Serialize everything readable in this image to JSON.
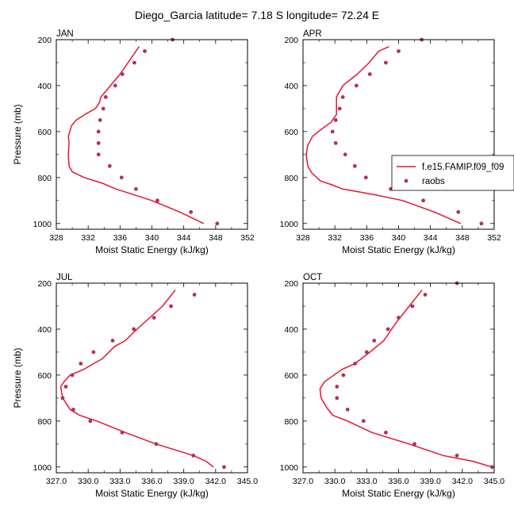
{
  "title": "Diego_Garcia  latitude= 7.18 S longitude= 72.24 E",
  "colors": {
    "model": "#e8142b",
    "raobs": "#b03060"
  },
  "legend": {
    "model_label": "f.e15.FAMIP.f09_f09",
    "raobs_label": "raobs",
    "placement": "right of APR panel"
  },
  "chart_data": [
    {
      "type": "line",
      "panel": "JAN",
      "title": "JAN",
      "xlabel": "Moist Static Energy (kJ/kg)",
      "ylabel": "Pressure (mb)",
      "xlim": [
        328,
        352
      ],
      "ylim": [
        200,
        1025
      ],
      "y_reversed": true,
      "xticks": [
        "328",
        "332",
        "336",
        "340",
        "344",
        "348",
        "352"
      ],
      "yticks": [
        "200",
        "400",
        "600",
        "800",
        "1000"
      ],
      "series": [
        {
          "name": "f.e15.FAMIP.f09_f09",
          "style": "line",
          "x": [
            346.5,
            343.5,
            340.0,
            335.5,
            333.8,
            331.5,
            330.0,
            329.6,
            329.5,
            329.6,
            329.5,
            329.7,
            329.9,
            330.5,
            331.6,
            332.9,
            333.4,
            333.6,
            334.8,
            336.0,
            337.0,
            338.4
          ],
          "y": [
            1000,
            950,
            900,
            850,
            825,
            800,
            775,
            750,
            700,
            650,
            620,
            600,
            575,
            550,
            525,
            500,
            475,
            450,
            400,
            350,
            300,
            230
          ]
        },
        {
          "name": "raobs",
          "style": "markers",
          "x": [
            348.2,
            344.9,
            340.7,
            338.0,
            336.2,
            334.7,
            333.3,
            333.3,
            333.3,
            333.5,
            333.9,
            334.2,
            335.4,
            336.3,
            337.8,
            339.1,
            342.6
          ],
          "y": [
            1000,
            950,
            900,
            850,
            800,
            750,
            700,
            650,
            600,
            550,
            500,
            450,
            400,
            350,
            300,
            250,
            200
          ]
        }
      ]
    },
    {
      "type": "line",
      "panel": "APR",
      "title": "APR",
      "xlabel": "Moist Static Energy (kJ/kg)",
      "ylabel": "",
      "xlim": [
        328,
        352
      ],
      "ylim": [
        200,
        1025
      ],
      "y_reversed": true,
      "xticks": [
        "328",
        "332",
        "336",
        "340",
        "344",
        "348",
        "352"
      ],
      "yticks": [
        "200",
        "400",
        "600",
        "800",
        "1000"
      ],
      "series": [
        {
          "name": "f.e15.FAMIP.f09_f09",
          "style": "line",
          "x": [
            347.8,
            344.5,
            340.5,
            337.0,
            333.0,
            331.5,
            330.2,
            329.1,
            328.6,
            328.4,
            328.6,
            329.2,
            330.3,
            331.5,
            332.2,
            332.2,
            332.2,
            333.0,
            334.8,
            336.3,
            337.5,
            338.8
          ],
          "y": [
            1000,
            950,
            900,
            875,
            850,
            830,
            815,
            780,
            750,
            700,
            660,
            620,
            590,
            560,
            525,
            500,
            450,
            400,
            350,
            300,
            250,
            230
          ]
        },
        {
          "name": "raobs",
          "style": "markers",
          "x": [
            350.4,
            347.5,
            343.1,
            339.0,
            335.9,
            334.5,
            333.3,
            332.1,
            331.7,
            332.1,
            332.6,
            333.0,
            334.7,
            336.4,
            338.4,
            340.0,
            342.9
          ],
          "y": [
            1000,
            950,
            900,
            850,
            800,
            750,
            700,
            650,
            600,
            550,
            500,
            450,
            400,
            350,
            300,
            250,
            200
          ]
        }
      ]
    },
    {
      "type": "line",
      "panel": "JUL",
      "title": "JUL",
      "xlabel": "Moist Static Energy (kJ/kg)",
      "ylabel": "Pressure (mb)",
      "xlim": [
        327,
        345
      ],
      "ylim": [
        200,
        1025
      ],
      "y_reversed": true,
      "xticks": [
        "327.0",
        "330.0",
        "333.0",
        "336.0",
        "339.0",
        "342.0",
        "345.0"
      ],
      "yticks": [
        "200",
        "400",
        "600",
        "800",
        "1000"
      ],
      "series": [
        {
          "name": "f.e15.FAMIP.f09_f09",
          "style": "line",
          "x": [
            341.8,
            341.1,
            339.9,
            336.4,
            333.5,
            330.8,
            329.2,
            328.3,
            327.6,
            327.4,
            327.8,
            328.3,
            329.6,
            330.5,
            331.3,
            332.5,
            333.5,
            334.6,
            335.8,
            337.0,
            338.2
          ],
          "y": [
            1000,
            975,
            950,
            900,
            850,
            800,
            775,
            750,
            700,
            650,
            625,
            600,
            575,
            550,
            530,
            475,
            450,
            400,
            350,
            300,
            230
          ]
        },
        {
          "name": "raobs",
          "style": "markers",
          "x": [
            342.8,
            339.9,
            336.4,
            333.2,
            330.2,
            328.6,
            327.6,
            327.9,
            328.5,
            329.3,
            330.5,
            332.3,
            334.3,
            336.2,
            337.8,
            340.0
          ],
          "y": [
            1000,
            950,
            900,
            850,
            800,
            750,
            700,
            650,
            600,
            550,
            500,
            450,
            400,
            350,
            300,
            250
          ]
        }
      ]
    },
    {
      "type": "line",
      "panel": "OCT",
      "title": "OCT",
      "xlabel": "Moist Static Energy (kJ/kg)",
      "ylabel": "",
      "xlim": [
        327,
        345
      ],
      "ylim": [
        200,
        1025
      ],
      "y_reversed": true,
      "xticks": [
        "327.0",
        "330.0",
        "333.0",
        "336.0",
        "339.0",
        "342.0",
        "345.0"
      ],
      "yticks": [
        "200",
        "400",
        "600",
        "800",
        "1000"
      ],
      "series": [
        {
          "name": "f.e15.FAMIP.f09_f09",
          "style": "line",
          "x": [
            344.8,
            343.0,
            340.2,
            337.0,
            333.5,
            331.2,
            329.8,
            329.2,
            328.7,
            328.6,
            329.0,
            329.6,
            330.7,
            331.9,
            333.3,
            334.6,
            335.8,
            337.0,
            338.2
          ],
          "y": [
            1000,
            975,
            950,
            900,
            850,
            800,
            775,
            740,
            700,
            660,
            630,
            610,
            575,
            550,
            500,
            450,
            370,
            300,
            230
          ]
        },
        {
          "name": "raobs",
          "style": "markers",
          "x": [
            344.8,
            341.5,
            337.5,
            334.8,
            332.7,
            331.2,
            330.2,
            330.2,
            330.8,
            331.9,
            333.0,
            333.7,
            335.0,
            336.0,
            337.3,
            338.5,
            341.5
          ],
          "y": [
            1000,
            950,
            900,
            850,
            800,
            750,
            700,
            650,
            600,
            550,
            500,
            450,
            400,
            350,
            300,
            250,
            200
          ]
        }
      ]
    }
  ]
}
